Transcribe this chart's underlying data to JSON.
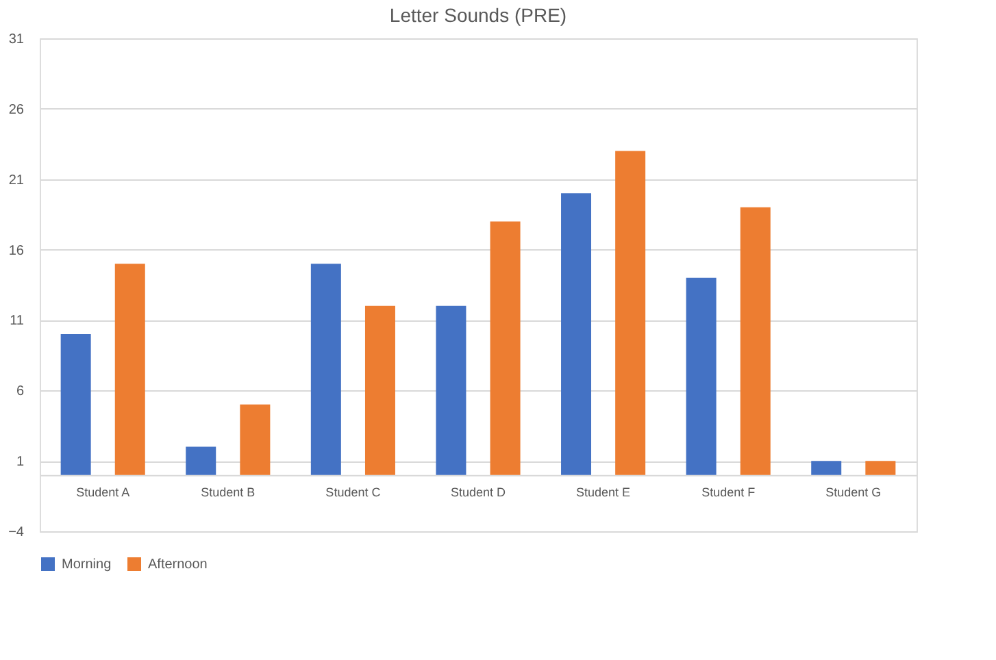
{
  "chart_data": {
    "type": "bar",
    "title": "Letter Sounds (PRE)",
    "categories": [
      "Student A",
      "Student B",
      "Student C",
      "Student D",
      "Student E",
      "Student F",
      "Student G"
    ],
    "series": [
      {
        "name": "Morning",
        "color": "#4472c4",
        "values": [
          10,
          2,
          15,
          12,
          20,
          14,
          1
        ]
      },
      {
        "name": "Afternoon",
        "color": "#ed7d31",
        "values": [
          15,
          5,
          12,
          18,
          23,
          19,
          1
        ]
      }
    ],
    "ylim": [
      -4,
      31
    ],
    "yticks": [
      -4,
      1,
      6,
      11,
      16,
      21,
      26,
      31
    ],
    "grid": "y",
    "legend": "bottom"
  }
}
